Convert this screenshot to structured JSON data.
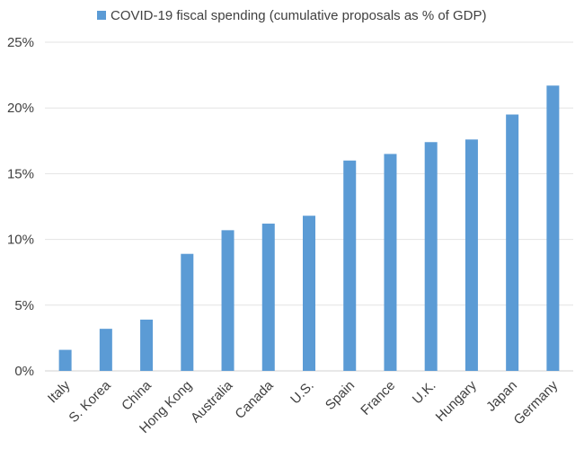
{
  "chart_data": {
    "type": "bar",
    "legend": {
      "label": "COVID-19 fiscal spending (cumulative proposals as % of GDP)",
      "position": "top"
    },
    "categories": [
      "Italy",
      "S. Korea",
      "China",
      "Hong Kong",
      "Australia",
      "Canada",
      "U.S.",
      "Spain",
      "France",
      "U.K.",
      "Hungary",
      "Japan",
      "Germany"
    ],
    "series": [
      {
        "name": "COVID-19 fiscal spending (cumulative proposals as % of GDP)",
        "values": [
          1.6,
          3.2,
          3.9,
          8.9,
          10.7,
          11.2,
          11.8,
          16.0,
          16.5,
          17.4,
          17.6,
          19.5,
          21.7
        ],
        "color": "#5b9bd5"
      }
    ],
    "y_ticks": [
      "0%",
      "5%",
      "10%",
      "15%",
      "20%",
      "25%"
    ],
    "ylim": [
      0,
      25
    ],
    "grid": true,
    "xlabel": "",
    "ylabel": ""
  }
}
